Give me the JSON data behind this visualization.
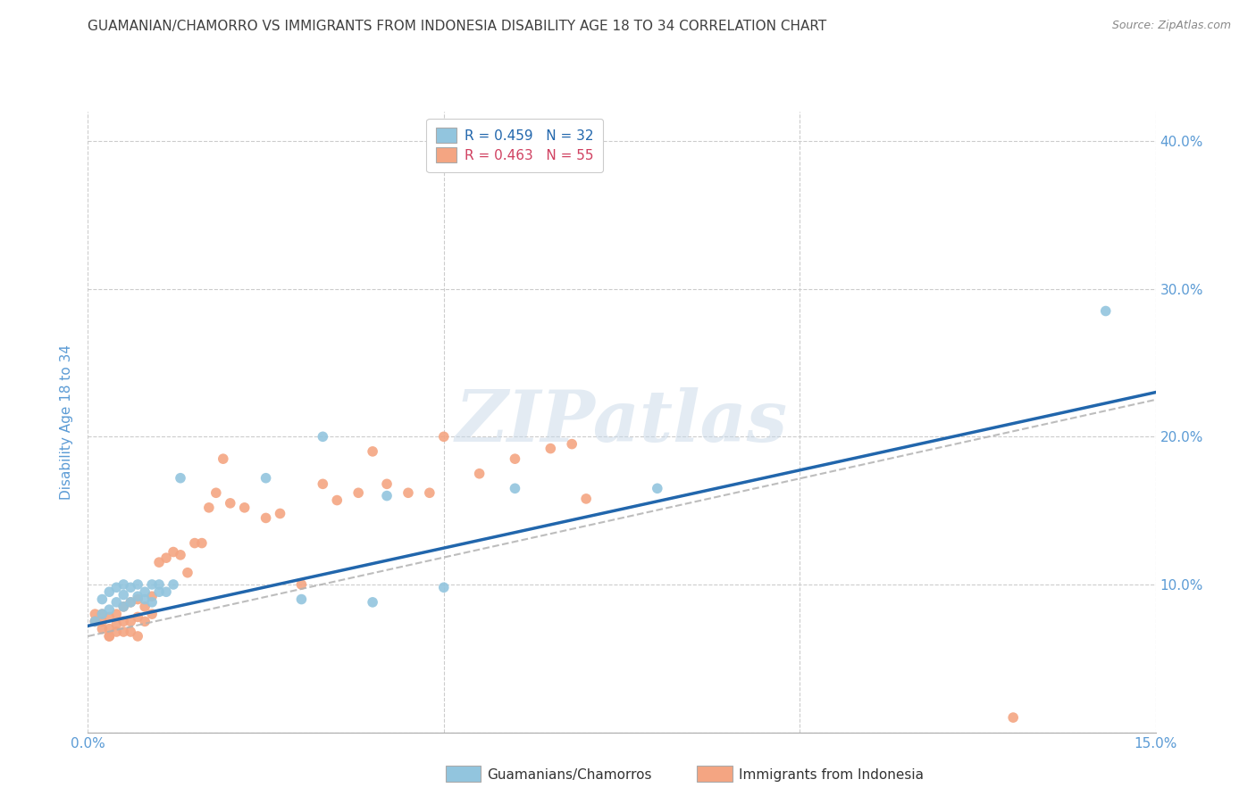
{
  "title": "GUAMANIAN/CHAMORRO VS IMMIGRANTS FROM INDONESIA DISABILITY AGE 18 TO 34 CORRELATION CHART",
  "source": "Source: ZipAtlas.com",
  "ylabel": "Disability Age 18 to 34",
  "xlim": [
    0.0,
    0.15
  ],
  "ylim": [
    0.0,
    0.42
  ],
  "legend_labels": [
    "R = 0.459   N = 32",
    "R = 0.463   N = 55"
  ],
  "blue_color": "#92c5de",
  "pink_color": "#f4a582",
  "line_blue_color": "#2166ac",
  "line_pink_color": "#b2b2b2",
  "background_color": "#ffffff",
  "grid_color": "#cccccc",
  "title_color": "#404040",
  "tick_color": "#5b9bd5",
  "watermark": "ZIPatlas",
  "blue_scatter_x": [
    0.001,
    0.002,
    0.002,
    0.003,
    0.003,
    0.004,
    0.004,
    0.005,
    0.005,
    0.005,
    0.006,
    0.006,
    0.007,
    0.007,
    0.008,
    0.008,
    0.009,
    0.009,
    0.01,
    0.01,
    0.011,
    0.012,
    0.013,
    0.025,
    0.03,
    0.033,
    0.04,
    0.042,
    0.05,
    0.06,
    0.08,
    0.143
  ],
  "blue_scatter_y": [
    0.075,
    0.08,
    0.09,
    0.083,
    0.095,
    0.088,
    0.098,
    0.085,
    0.093,
    0.1,
    0.088,
    0.098,
    0.092,
    0.1,
    0.09,
    0.095,
    0.1,
    0.088,
    0.1,
    0.095,
    0.095,
    0.1,
    0.172,
    0.172,
    0.09,
    0.2,
    0.088,
    0.16,
    0.098,
    0.165,
    0.165,
    0.285
  ],
  "pink_scatter_x": [
    0.001,
    0.001,
    0.001,
    0.002,
    0.002,
    0.002,
    0.003,
    0.003,
    0.003,
    0.003,
    0.004,
    0.004,
    0.004,
    0.005,
    0.005,
    0.005,
    0.006,
    0.006,
    0.006,
    0.007,
    0.007,
    0.007,
    0.008,
    0.008,
    0.009,
    0.009,
    0.01,
    0.011,
    0.012,
    0.013,
    0.014,
    0.015,
    0.016,
    0.017,
    0.018,
    0.019,
    0.02,
    0.022,
    0.025,
    0.027,
    0.03,
    0.033,
    0.035,
    0.038,
    0.04,
    0.042,
    0.045,
    0.048,
    0.05,
    0.055,
    0.06,
    0.065,
    0.068,
    0.07,
    0.13
  ],
  "pink_scatter_y": [
    0.075,
    0.075,
    0.08,
    0.07,
    0.075,
    0.08,
    0.065,
    0.065,
    0.07,
    0.078,
    0.068,
    0.073,
    0.08,
    0.068,
    0.075,
    0.085,
    0.068,
    0.075,
    0.088,
    0.065,
    0.078,
    0.09,
    0.075,
    0.085,
    0.08,
    0.092,
    0.115,
    0.118,
    0.122,
    0.12,
    0.108,
    0.128,
    0.128,
    0.152,
    0.162,
    0.185,
    0.155,
    0.152,
    0.145,
    0.148,
    0.1,
    0.168,
    0.157,
    0.162,
    0.19,
    0.168,
    0.162,
    0.162,
    0.2,
    0.175,
    0.185,
    0.192,
    0.195,
    0.158,
    0.01
  ],
  "blue_line_x0": 0.0,
  "blue_line_x1": 0.15,
  "blue_line_y0": 0.072,
  "blue_line_y1": 0.23,
  "pink_line_x0": 0.0,
  "pink_line_x1": 0.15,
  "pink_line_y0": 0.065,
  "pink_line_y1": 0.225
}
